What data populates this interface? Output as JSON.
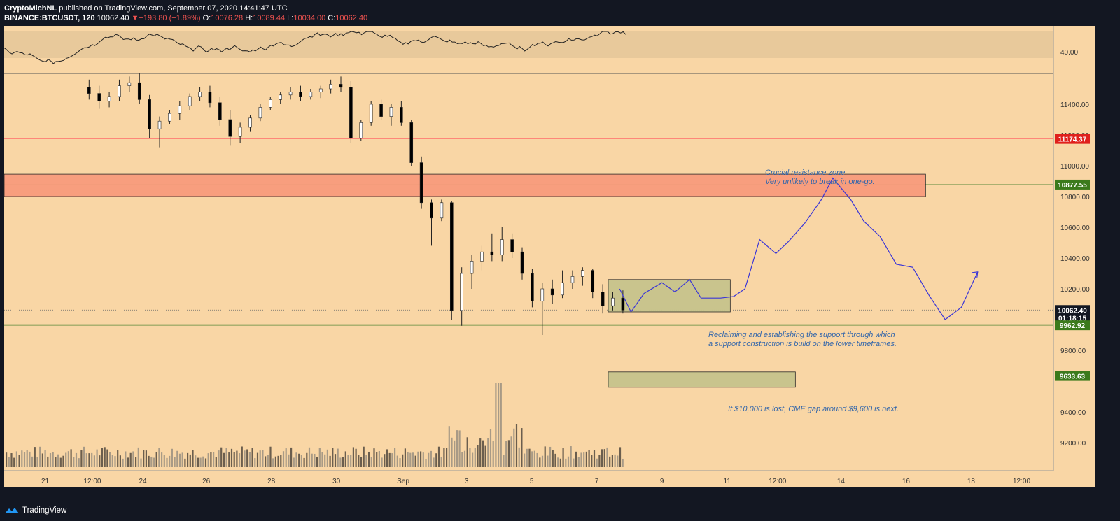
{
  "header": {
    "author": "CryptoMichNL",
    "published": " published on TradingView.com, September 07, 2020 14:41:47 UTC",
    "symbol": "BINANCE:BTCUSDT, 120",
    "last": "10062.40",
    "change": "−193.80 (−1.89%)",
    "open_label": "O:",
    "open": "10076.28",
    "high_label": "H:",
    "high": "10089.44",
    "low_label": "L:",
    "low": "10034.00",
    "close_label": "C:",
    "close": "10062.40"
  },
  "footer": {
    "brand": "TradingView"
  },
  "colors": {
    "page_bg": "#131722",
    "plot_bg": "#f9d6a5",
    "candle_up": "#ffffff",
    "candle_down": "#000000",
    "resistance_zone": "#f89c7c",
    "support_box": "#c7c48c",
    "projection": "#3b36d6",
    "annotation_text": "#3366aa",
    "red_line": "#ff6b6b",
    "green_line": "#5a8a3a",
    "badge_red": "#e0201c",
    "badge_green": "#3b7a1c",
    "badge_dark": "#131722"
  },
  "chart_data": {
    "type": "candlestick",
    "title": "",
    "y_axis": {
      "min": 9100,
      "max": 11600,
      "ticks": [
        "11400.00",
        "11200.00",
        "11000.00",
        "10800.00",
        "10600.00",
        "10400.00",
        "10200.00",
        "9800.00",
        "9400.00",
        "9200.00"
      ],
      "tick_values": [
        11400,
        11200,
        11000,
        10800,
        10600,
        10400,
        10200,
        9800,
        9400,
        9200
      ]
    },
    "x_axis": {
      "labels": [
        "21",
        "12:00",
        "24",
        "26",
        "28",
        "30",
        "Sep",
        "3",
        "5",
        "7",
        "9",
        "11",
        "12:00",
        "14",
        "16",
        "18",
        "12:00"
      ],
      "start": "Aug 20",
      "end": "Sep 19"
    },
    "rsi_panel": {
      "level_label": "40.00"
    },
    "price_badges": [
      {
        "label": "11174.37",
        "value": 11174.37,
        "style": "red"
      },
      {
        "label": "10877.55",
        "value": 10877.55,
        "style": "green"
      },
      {
        "label": "10062.40",
        "value": 10062.4,
        "style": "dark"
      },
      {
        "label": "01:18:15",
        "value": 10012,
        "style": "dark"
      },
      {
        "label": "9962.92",
        "value": 9962.92,
        "style": "green"
      },
      {
        "label": "9633.63",
        "value": 9633.63,
        "style": "green"
      }
    ],
    "horizontal_levels": [
      {
        "value": 11174.37,
        "color": "red"
      },
      {
        "value": 10877.55,
        "color": "green"
      },
      {
        "value": 9962.92,
        "color": "green"
      },
      {
        "value": 9633.63,
        "color": "green"
      },
      {
        "value": 10062.4,
        "color": "dotted"
      }
    ],
    "zones": [
      {
        "name": "resistance",
        "price_low": 10800,
        "price_high": 10945,
        "date_from": "Aug 20",
        "date_to": "Sep 16"
      },
      {
        "name": "support-construction",
        "price_low": 10050,
        "price_high": 10260,
        "date_from": "Sep 7",
        "date_to": "Sep 10"
      },
      {
        "name": "cme-gap",
        "price_low": 9560,
        "price_high": 9660,
        "date_from": "Sep 7",
        "date_to": "Sep 12"
      }
    ],
    "annotations": [
      {
        "line1": "Crucial resistance zone.",
        "line2": "Very unlikely to break in one-go."
      },
      {
        "line1": "Reclaiming and establishing the support through which",
        "line2": "a support construction is build on the lower timeframes."
      },
      {
        "line1": "If $10,000 is lost, CME gap around $9,600 is next.",
        "line2": ""
      }
    ],
    "candles_approx": [
      [
        11510,
        11560,
        11430,
        11470
      ],
      [
        11470,
        11520,
        11370,
        11420
      ],
      [
        11420,
        11480,
        11380,
        11450
      ],
      [
        11450,
        11560,
        11420,
        11520
      ],
      [
        11520,
        11580,
        11480,
        11540
      ],
      [
        11540,
        11600,
        11400,
        11430
      ],
      [
        11430,
        11460,
        11180,
        11240
      ],
      [
        11240,
        11320,
        11120,
        11290
      ],
      [
        11290,
        11360,
        11270,
        11340
      ],
      [
        11340,
        11420,
        11300,
        11390
      ],
      [
        11390,
        11470,
        11360,
        11450
      ],
      [
        11450,
        11510,
        11420,
        11480
      ],
      [
        11480,
        11520,
        11380,
        11410
      ],
      [
        11410,
        11450,
        11260,
        11300
      ],
      [
        11300,
        11360,
        11130,
        11190
      ],
      [
        11190,
        11280,
        11150,
        11250
      ],
      [
        11250,
        11330,
        11220,
        11310
      ],
      [
        11310,
        11400,
        11290,
        11380
      ],
      [
        11380,
        11450,
        11360,
        11430
      ],
      [
        11430,
        11480,
        11400,
        11460
      ],
      [
        11460,
        11510,
        11430,
        11480
      ],
      [
        11480,
        11520,
        11420,
        11450
      ],
      [
        11450,
        11500,
        11430,
        11480
      ],
      [
        11480,
        11520,
        11440,
        11500
      ],
      [
        11500,
        11560,
        11470,
        11530
      ],
      [
        11530,
        11580,
        11480,
        11510
      ],
      [
        11510,
        11550,
        11150,
        11180
      ],
      [
        11180,
        11300,
        11160,
        11280
      ],
      [
        11280,
        11420,
        11260,
        11400
      ],
      [
        11400,
        11430,
        11300,
        11320
      ],
      [
        11320,
        11400,
        11260,
        11380
      ],
      [
        11380,
        11420,
        11260,
        11280
      ],
      [
        11280,
        11300,
        11000,
        11020
      ],
      [
        11020,
        11060,
        10720,
        10760
      ],
      [
        10760,
        10780,
        10480,
        10660
      ],
      [
        10660,
        10780,
        10640,
        10760
      ],
      [
        10760,
        10770,
        10000,
        10060
      ],
      [
        10060,
        10340,
        9960,
        10300
      ],
      [
        10300,
        10420,
        10200,
        10380
      ],
      [
        10380,
        10480,
        10320,
        10440
      ],
      [
        10440,
        10560,
        10380,
        10420
      ],
      [
        10420,
        10600,
        10380,
        10520
      ],
      [
        10520,
        10560,
        10400,
        10440
      ],
      [
        10440,
        10470,
        10260,
        10300
      ],
      [
        10300,
        10330,
        10080,
        10120
      ],
      [
        10120,
        10240,
        9900,
        10200
      ],
      [
        10200,
        10260,
        10100,
        10160
      ],
      [
        10160,
        10320,
        10140,
        10240
      ],
      [
        10240,
        10320,
        10200,
        10280
      ],
      [
        10280,
        10340,
        10220,
        10320
      ],
      [
        10320,
        10330,
        10140,
        10180
      ],
      [
        10180,
        10230,
        10040,
        10090
      ],
      [
        10090,
        10180,
        10060,
        10140
      ],
      [
        10140,
        10190,
        10040,
        10062
      ]
    ]
  }
}
